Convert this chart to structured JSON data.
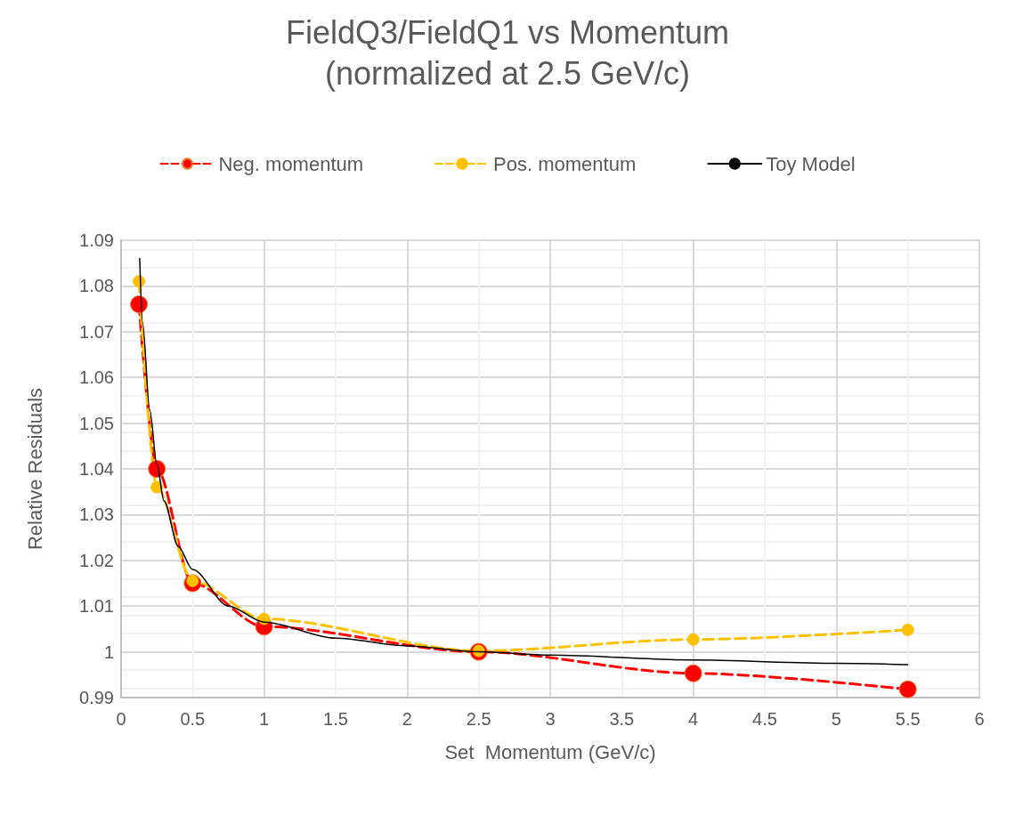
{
  "chart_data": {
    "type": "line",
    "title": "FieldQ3/FieldQ1 vs Momentum",
    "subtitle": "(normalized at 2.5 GeV/c)",
    "xlabel": "Set  Momentum (GeV/c)",
    "ylabel": "Relative Residuals",
    "xlim": [
      0,
      6
    ],
    "xticks": [
      0,
      0.5,
      1,
      1.5,
      2,
      2.5,
      3,
      3.5,
      4,
      4.5,
      5,
      5.5,
      6
    ],
    "ylim": [
      0.99,
      1.09
    ],
    "yticks": [
      0.99,
      1,
      1.01,
      1.02,
      1.03,
      1.04,
      1.05,
      1.06,
      1.07,
      1.08,
      1.09
    ],
    "grid": true,
    "legend": "top",
    "series": [
      {
        "name": "Neg. momentum",
        "color": "#ff0000",
        "marker": "circle",
        "line_style": "dashed",
        "x": [
          0.125,
          0.25,
          0.5,
          1,
          2.5,
          4,
          5.5
        ],
        "values": [
          1.076,
          1.04,
          1.015,
          1.0055,
          1.0,
          0.9953,
          0.9918
        ]
      },
      {
        "name": "Pos. momentum",
        "color": "#ffc000",
        "marker": "circle",
        "line_style": "dashed",
        "x": [
          0.125,
          0.25,
          0.5,
          1,
          2.5,
          4,
          5.5
        ],
        "values": [
          1.081,
          1.036,
          1.0155,
          1.0072,
          1.0002,
          1.0027,
          1.0048
        ]
      },
      {
        "name": "Toy Model",
        "color": "#000000",
        "marker": "none",
        "line_style": "solid",
        "x": [
          0.13,
          0.15,
          0.2,
          0.25,
          0.3,
          0.4,
          0.5,
          0.75,
          1,
          1.5,
          2,
          2.5,
          3,
          4,
          5,
          5.5
        ],
        "values": [
          1.086,
          1.072,
          1.053,
          1.041,
          1.033,
          1.023,
          1.018,
          1.01,
          1.0065,
          1.003,
          1.0013,
          1.0,
          0.9993,
          0.9982,
          0.9975,
          0.9972
        ]
      }
    ]
  }
}
